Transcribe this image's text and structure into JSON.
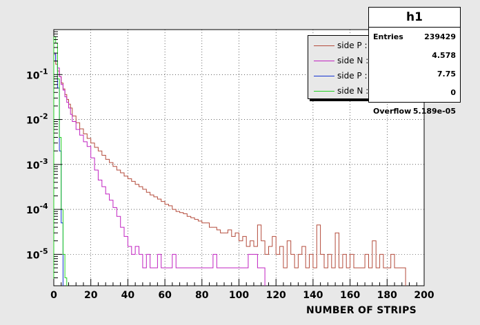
{
  "chart_data": {
    "type": "step",
    "title": "",
    "xlabel": "NUMBER OF STRIPS",
    "ylabel": "",
    "xlim": [
      0,
      200
    ],
    "ylim": [
      2e-06,
      1
    ],
    "ylog": true,
    "grid": true,
    "xticks": [
      0,
      20,
      40,
      60,
      80,
      100,
      120,
      140,
      160,
      180,
      200
    ],
    "yticks": [
      {
        "value": 0.1,
        "base": "10",
        "exp": "-1"
      },
      {
        "value": 0.01,
        "base": "10",
        "exp": "-2"
      },
      {
        "value": 0.001,
        "base": "10",
        "exp": "-3"
      },
      {
        "value": 0.0001,
        "base": "10",
        "exp": "-4"
      },
      {
        "value": 1e-05,
        "base": "10",
        "exp": "-5"
      }
    ],
    "legend_position": "top-right",
    "series": [
      {
        "name": "side P : no ground",
        "color": "#b34a3a",
        "x": [
          1,
          2,
          3,
          4,
          5,
          6,
          7,
          8,
          9,
          10,
          12,
          14,
          16,
          18,
          20,
          22,
          24,
          26,
          28,
          30,
          32,
          34,
          36,
          38,
          40,
          42,
          44,
          46,
          48,
          50,
          52,
          54,
          56,
          58,
          60,
          62,
          64,
          66,
          68,
          70,
          72,
          74,
          76,
          78,
          80,
          82,
          84,
          86,
          88,
          90,
          92,
          94,
          96,
          98,
          100,
          102,
          104,
          106,
          108,
          110,
          112,
          114,
          116,
          118,
          120,
          122,
          124,
          126,
          128,
          130,
          132,
          134,
          136,
          138,
          140,
          142,
          144,
          146,
          148,
          150,
          152,
          154,
          156,
          158,
          160,
          162,
          164,
          166,
          168,
          170,
          172,
          174,
          176,
          178,
          180,
          182,
          184,
          186,
          188,
          190
        ],
        "values": [
          0.2,
          0.17,
          0.12,
          0.09,
          0.065,
          0.048,
          0.036,
          0.028,
          0.022,
          0.018,
          0.012,
          0.0085,
          0.0062,
          0.0048,
          0.0038,
          0.003,
          0.0024,
          0.002,
          0.0016,
          0.0013,
          0.0011,
          0.0009,
          0.00075,
          0.00065,
          0.00055,
          0.00048,
          0.00042,
          0.00036,
          0.00032,
          0.00028,
          0.00024,
          0.00021,
          0.00019,
          0.00017,
          0.00015,
          0.00013,
          0.00012,
          0.0001,
          9e-05,
          8.5e-05,
          8e-05,
          7e-05,
          6.5e-05,
          6e-05,
          5.5e-05,
          5e-05,
          5e-05,
          4e-05,
          4e-05,
          3.5e-05,
          3e-05,
          3e-05,
          3.5e-05,
          2.5e-05,
          3e-05,
          2e-05,
          2.5e-05,
          1.5e-05,
          2e-05,
          1.5e-05,
          4.5e-05,
          2e-05,
          1e-05,
          1.5e-05,
          2.5e-05,
          1e-05,
          1.5e-05,
          5e-06,
          2e-05,
          1e-05,
          5e-06,
          1e-05,
          1.5e-05,
          5e-06,
          1e-05,
          5e-06,
          4.5e-05,
          1e-05,
          5e-06,
          1e-05,
          5e-06,
          3e-05,
          5e-06,
          1e-05,
          5e-06,
          1e-05,
          5e-06,
          5e-06,
          5e-06,
          1e-05,
          5e-06,
          2e-05,
          5e-06,
          1e-05,
          5e-06,
          5e-06,
          1e-05,
          5e-06,
          5e-06,
          5e-06
        ]
      },
      {
        "name": "side N :  no ground",
        "color": "#c020c0",
        "x": [
          1,
          2,
          3,
          4,
          5,
          6,
          7,
          8,
          9,
          10,
          12,
          14,
          16,
          18,
          20,
          22,
          24,
          26,
          28,
          30,
          32,
          34,
          36,
          38,
          40,
          42,
          44,
          46,
          48,
          50,
          52,
          54,
          56,
          58,
          60,
          62,
          64,
          66,
          68,
          70,
          72,
          74,
          76,
          78,
          80,
          82,
          84,
          86,
          88,
          90,
          95,
          100,
          105,
          110,
          112,
          114
        ],
        "values": [
          0.28,
          0.2,
          0.14,
          0.09,
          0.06,
          0.045,
          0.032,
          0.024,
          0.018,
          0.013,
          0.009,
          0.006,
          0.0045,
          0.0032,
          0.0025,
          0.0014,
          0.00075,
          0.00045,
          0.00032,
          0.00022,
          0.00016,
          0.00011,
          7e-05,
          4e-05,
          2.5e-05,
          1.5e-05,
          1e-05,
          1.5e-05,
          1e-05,
          5e-06,
          1e-05,
          5e-06,
          5e-06,
          1e-05,
          5e-06,
          5e-06,
          5e-06,
          1e-05,
          5e-06,
          5e-06,
          5e-06,
          5e-06,
          5e-06,
          5e-06,
          5e-06,
          5e-06,
          5e-06,
          5e-06,
          1e-05,
          5e-06,
          5e-06,
          5e-06,
          5e-06,
          1e-05,
          5e-06,
          5e-06
        ]
      },
      {
        "name": "side P : simu",
        "color": "#1030d0",
        "x": [
          1,
          2,
          3,
          4,
          5
        ],
        "values": [
          0.3,
          0.2,
          0.05,
          0.002,
          5e-05
        ]
      },
      {
        "name": "side N : simu",
        "color": "#20d020",
        "x": [
          1,
          2,
          3,
          4,
          5,
          6,
          7
        ],
        "values": [
          0.7,
          0.5,
          0.08,
          0.004,
          0.0001,
          1e-05,
          3e-06
        ]
      }
    ]
  },
  "stats": {
    "title": "h1",
    "rows": [
      {
        "label": "Entries",
        "value": "239429"
      },
      {
        "label": "",
        "value": "4.578"
      },
      {
        "label": "",
        "value": "7.75"
      },
      {
        "label": "",
        "value": "0"
      },
      {
        "label": "Overflow",
        "value": "5.189e-05"
      }
    ]
  }
}
